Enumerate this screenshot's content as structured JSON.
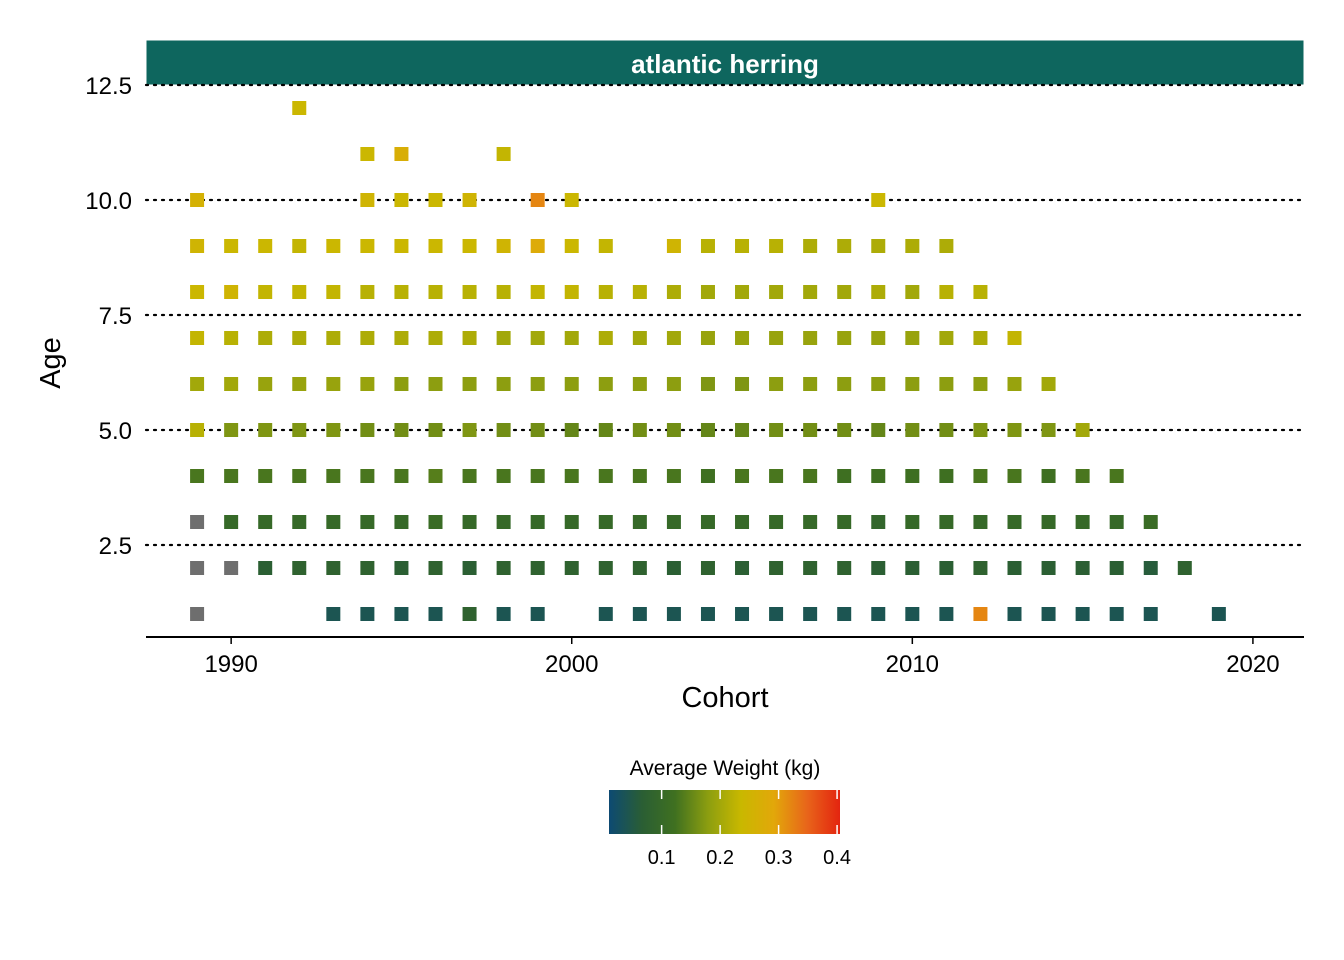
{
  "chart_data": {
    "type": "heatmap",
    "title": "",
    "facet_label": "atlantic herring",
    "xlabel": "Cohort",
    "ylabel": "Age",
    "xlim": [
      1987.5,
      2021.5
    ],
    "ylim": [
      0.5,
      12.5
    ],
    "x_ticks": [
      1990,
      2000,
      2010,
      2020
    ],
    "x_tick_labels": [
      "1990",
      "2000",
      "2010",
      "2020"
    ],
    "y_ticks": [
      2.5,
      5.0,
      7.5,
      10.0,
      12.5
    ],
    "y_tick_labels": [
      "2.5",
      "5.0",
      "7.5",
      "10.0",
      "12.5"
    ],
    "grid": "horizontal dotted at y ticks",
    "legend": {
      "title": "Average Weight (kg)",
      "position": "bottom",
      "ticks": [
        0.1,
        0.2,
        0.3,
        0.4
      ],
      "tick_labels": [
        "0.1",
        "0.2",
        "0.3",
        "0.4"
      ],
      "range": [
        0.01,
        0.405
      ],
      "colors": [
        "#0d4a73",
        "#2a5e34",
        "#3f7020",
        "#8c9e10",
        "#c9b800",
        "#e2a70a",
        "#e8651a",
        "#e3240f"
      ],
      "na_color": "#6e6e6e",
      "accent_strip": "#0e665e"
    },
    "points": [
      [
        1989,
        1,
        null
      ],
      [
        1993,
        1,
        0.04
      ],
      [
        1994,
        1,
        0.04
      ],
      [
        1995,
        1,
        0.04
      ],
      [
        1996,
        1,
        0.04
      ],
      [
        1997,
        1,
        0.08
      ],
      [
        1998,
        1,
        0.04
      ],
      [
        1999,
        1,
        0.04
      ],
      [
        2001,
        1,
        0.04
      ],
      [
        2002,
        1,
        0.04
      ],
      [
        2003,
        1,
        0.04
      ],
      [
        2004,
        1,
        0.04
      ],
      [
        2005,
        1,
        0.04
      ],
      [
        2006,
        1,
        0.04
      ],
      [
        2007,
        1,
        0.04
      ],
      [
        2008,
        1,
        0.04
      ],
      [
        2009,
        1,
        0.04
      ],
      [
        2010,
        1,
        0.04
      ],
      [
        2011,
        1,
        0.04
      ],
      [
        2012,
        1,
        0.32
      ],
      [
        2013,
        1,
        0.04
      ],
      [
        2014,
        1,
        0.04
      ],
      [
        2015,
        1,
        0.04
      ],
      [
        2016,
        1,
        0.04
      ],
      [
        2017,
        1,
        0.04
      ],
      [
        2019,
        1,
        0.04
      ],
      [
        1989,
        2,
        null
      ],
      [
        1990,
        2,
        null
      ],
      [
        1991,
        2,
        0.07
      ],
      [
        1992,
        2,
        0.08
      ],
      [
        1993,
        2,
        0.08
      ],
      [
        1994,
        2,
        0.08
      ],
      [
        1995,
        2,
        0.07
      ],
      [
        1996,
        2,
        0.08
      ],
      [
        1997,
        2,
        0.07
      ],
      [
        1998,
        2,
        0.08
      ],
      [
        1999,
        2,
        0.08
      ],
      [
        2000,
        2,
        0.08
      ],
      [
        2001,
        2,
        0.08
      ],
      [
        2002,
        2,
        0.08
      ],
      [
        2003,
        2,
        0.07
      ],
      [
        2004,
        2,
        0.08
      ],
      [
        2005,
        2,
        0.07
      ],
      [
        2006,
        2,
        0.08
      ],
      [
        2007,
        2,
        0.08
      ],
      [
        2008,
        2,
        0.08
      ],
      [
        2009,
        2,
        0.07
      ],
      [
        2010,
        2,
        0.07
      ],
      [
        2011,
        2,
        0.07
      ],
      [
        2012,
        2,
        0.08
      ],
      [
        2013,
        2,
        0.07
      ],
      [
        2014,
        2,
        0.07
      ],
      [
        2015,
        2,
        0.07
      ],
      [
        2016,
        2,
        0.07
      ],
      [
        2017,
        2,
        0.06
      ],
      [
        2018,
        2,
        0.08
      ],
      [
        1989,
        3,
        null
      ],
      [
        1990,
        3,
        0.1
      ],
      [
        1991,
        3,
        0.1
      ],
      [
        1992,
        3,
        0.1
      ],
      [
        1993,
        3,
        0.1
      ],
      [
        1994,
        3,
        0.1
      ],
      [
        1995,
        3,
        0.1
      ],
      [
        1996,
        3,
        0.11
      ],
      [
        1997,
        3,
        0.1
      ],
      [
        1998,
        3,
        0.1
      ],
      [
        1999,
        3,
        0.1
      ],
      [
        2000,
        3,
        0.1
      ],
      [
        2001,
        3,
        0.1
      ],
      [
        2002,
        3,
        0.1
      ],
      [
        2003,
        3,
        0.1
      ],
      [
        2004,
        3,
        0.1
      ],
      [
        2005,
        3,
        0.1
      ],
      [
        2006,
        3,
        0.1
      ],
      [
        2007,
        3,
        0.1
      ],
      [
        2008,
        3,
        0.1
      ],
      [
        2009,
        3,
        0.09
      ],
      [
        2010,
        3,
        0.1
      ],
      [
        2011,
        3,
        0.1
      ],
      [
        2012,
        3,
        0.1
      ],
      [
        2013,
        3,
        0.1
      ],
      [
        2014,
        3,
        0.1
      ],
      [
        2015,
        3,
        0.1
      ],
      [
        2016,
        3,
        0.1
      ],
      [
        2017,
        3,
        0.11
      ],
      [
        1989,
        4,
        0.13
      ],
      [
        1990,
        4,
        0.13
      ],
      [
        1991,
        4,
        0.13
      ],
      [
        1992,
        4,
        0.13
      ],
      [
        1993,
        4,
        0.13
      ],
      [
        1994,
        4,
        0.13
      ],
      [
        1995,
        4,
        0.13
      ],
      [
        1996,
        4,
        0.14
      ],
      [
        1997,
        4,
        0.13
      ],
      [
        1998,
        4,
        0.13
      ],
      [
        1999,
        4,
        0.13
      ],
      [
        2000,
        4,
        0.13
      ],
      [
        2001,
        4,
        0.13
      ],
      [
        2002,
        4,
        0.13
      ],
      [
        2003,
        4,
        0.13
      ],
      [
        2004,
        4,
        0.12
      ],
      [
        2005,
        4,
        0.13
      ],
      [
        2006,
        4,
        0.13
      ],
      [
        2007,
        4,
        0.13
      ],
      [
        2008,
        4,
        0.12
      ],
      [
        2009,
        4,
        0.12
      ],
      [
        2010,
        4,
        0.12
      ],
      [
        2011,
        4,
        0.12
      ],
      [
        2012,
        4,
        0.13
      ],
      [
        2013,
        4,
        0.13
      ],
      [
        2014,
        4,
        0.12
      ],
      [
        2015,
        4,
        0.13
      ],
      [
        2016,
        4,
        0.13
      ],
      [
        1989,
        5,
        0.22
      ],
      [
        1990,
        5,
        0.17
      ],
      [
        1991,
        5,
        0.17
      ],
      [
        1992,
        5,
        0.17
      ],
      [
        1993,
        5,
        0.17
      ],
      [
        1994,
        5,
        0.16
      ],
      [
        1995,
        5,
        0.16
      ],
      [
        1996,
        5,
        0.16
      ],
      [
        1997,
        5,
        0.17
      ],
      [
        1998,
        5,
        0.16
      ],
      [
        1999,
        5,
        0.16
      ],
      [
        2000,
        5,
        0.15
      ],
      [
        2001,
        5,
        0.15
      ],
      [
        2002,
        5,
        0.16
      ],
      [
        2003,
        5,
        0.16
      ],
      [
        2004,
        5,
        0.15
      ],
      [
        2005,
        5,
        0.15
      ],
      [
        2006,
        5,
        0.16
      ],
      [
        2007,
        5,
        0.16
      ],
      [
        2008,
        5,
        0.16
      ],
      [
        2009,
        5,
        0.15
      ],
      [
        2010,
        5,
        0.16
      ],
      [
        2011,
        5,
        0.16
      ],
      [
        2012,
        5,
        0.17
      ],
      [
        2013,
        5,
        0.17
      ],
      [
        2014,
        5,
        0.17
      ],
      [
        2015,
        5,
        0.2
      ],
      [
        1989,
        6,
        0.2
      ],
      [
        1990,
        6,
        0.2
      ],
      [
        1991,
        6,
        0.19
      ],
      [
        1992,
        6,
        0.19
      ],
      [
        1993,
        6,
        0.19
      ],
      [
        1994,
        6,
        0.19
      ],
      [
        1995,
        6,
        0.18
      ],
      [
        1996,
        6,
        0.18
      ],
      [
        1997,
        6,
        0.18
      ],
      [
        1998,
        6,
        0.18
      ],
      [
        1999,
        6,
        0.18
      ],
      [
        2000,
        6,
        0.18
      ],
      [
        2001,
        6,
        0.18
      ],
      [
        2002,
        6,
        0.18
      ],
      [
        2003,
        6,
        0.18
      ],
      [
        2004,
        6,
        0.17
      ],
      [
        2005,
        6,
        0.17
      ],
      [
        2006,
        6,
        0.18
      ],
      [
        2007,
        6,
        0.18
      ],
      [
        2008,
        6,
        0.18
      ],
      [
        2009,
        6,
        0.18
      ],
      [
        2010,
        6,
        0.18
      ],
      [
        2011,
        6,
        0.18
      ],
      [
        2012,
        6,
        0.18
      ],
      [
        2013,
        6,
        0.19
      ],
      [
        2014,
        6,
        0.2
      ],
      [
        1989,
        7,
        0.23
      ],
      [
        1990,
        7,
        0.22
      ],
      [
        1991,
        7,
        0.21
      ],
      [
        1992,
        7,
        0.21
      ],
      [
        1993,
        7,
        0.21
      ],
      [
        1994,
        7,
        0.21
      ],
      [
        1995,
        7,
        0.21
      ],
      [
        1996,
        7,
        0.21
      ],
      [
        1997,
        7,
        0.21
      ],
      [
        1998,
        7,
        0.2
      ],
      [
        1999,
        7,
        0.2
      ],
      [
        2000,
        7,
        0.2
      ],
      [
        2001,
        7,
        0.21
      ],
      [
        2002,
        7,
        0.2
      ],
      [
        2003,
        7,
        0.2
      ],
      [
        2004,
        7,
        0.19
      ],
      [
        2005,
        7,
        0.19
      ],
      [
        2006,
        7,
        0.19
      ],
      [
        2007,
        7,
        0.19
      ],
      [
        2008,
        7,
        0.19
      ],
      [
        2009,
        7,
        0.19
      ],
      [
        2010,
        7,
        0.19
      ],
      [
        2011,
        7,
        0.2
      ],
      [
        2012,
        7,
        0.21
      ],
      [
        2013,
        7,
        0.23
      ],
      [
        1989,
        8,
        0.24
      ],
      [
        1990,
        8,
        0.25
      ],
      [
        1991,
        8,
        0.23
      ],
      [
        1992,
        8,
        0.23
      ],
      [
        1993,
        8,
        0.23
      ],
      [
        1994,
        8,
        0.22
      ],
      [
        1995,
        8,
        0.22
      ],
      [
        1996,
        8,
        0.22
      ],
      [
        1997,
        8,
        0.22
      ],
      [
        1998,
        8,
        0.22
      ],
      [
        1999,
        8,
        0.23
      ],
      [
        2000,
        8,
        0.23
      ],
      [
        2001,
        8,
        0.22
      ],
      [
        2002,
        8,
        0.22
      ],
      [
        2003,
        8,
        0.21
      ],
      [
        2004,
        8,
        0.2
      ],
      [
        2005,
        8,
        0.2
      ],
      [
        2006,
        8,
        0.2
      ],
      [
        2007,
        8,
        0.2
      ],
      [
        2008,
        8,
        0.2
      ],
      [
        2009,
        8,
        0.21
      ],
      [
        2010,
        8,
        0.2
      ],
      [
        2011,
        8,
        0.22
      ],
      [
        2012,
        8,
        0.22
      ],
      [
        1989,
        9,
        0.25
      ],
      [
        1990,
        9,
        0.24
      ],
      [
        1991,
        9,
        0.24
      ],
      [
        1992,
        9,
        0.23
      ],
      [
        1993,
        9,
        0.24
      ],
      [
        1994,
        9,
        0.24
      ],
      [
        1995,
        9,
        0.24
      ],
      [
        1996,
        9,
        0.24
      ],
      [
        1997,
        9,
        0.24
      ],
      [
        1998,
        9,
        0.25
      ],
      [
        1999,
        9,
        0.28
      ],
      [
        2000,
        9,
        0.24
      ],
      [
        2001,
        9,
        0.23
      ],
      [
        2003,
        9,
        0.25
      ],
      [
        2004,
        9,
        0.22
      ],
      [
        2005,
        9,
        0.22
      ],
      [
        2006,
        9,
        0.22
      ],
      [
        2007,
        9,
        0.21
      ],
      [
        2008,
        9,
        0.21
      ],
      [
        2009,
        9,
        0.21
      ],
      [
        2010,
        9,
        0.21
      ],
      [
        2011,
        9,
        0.21
      ],
      [
        1989,
        10,
        0.26
      ],
      [
        1994,
        10,
        0.25
      ],
      [
        1995,
        10,
        0.24
      ],
      [
        1996,
        10,
        0.24
      ],
      [
        1997,
        10,
        0.25
      ],
      [
        1999,
        10,
        0.32
      ],
      [
        2000,
        10,
        0.24
      ],
      [
        2009,
        10,
        0.24
      ],
      [
        1994,
        11,
        0.24
      ],
      [
        1995,
        11,
        0.27
      ],
      [
        1998,
        11,
        0.23
      ],
      [
        1992,
        12,
        0.24
      ]
    ]
  }
}
